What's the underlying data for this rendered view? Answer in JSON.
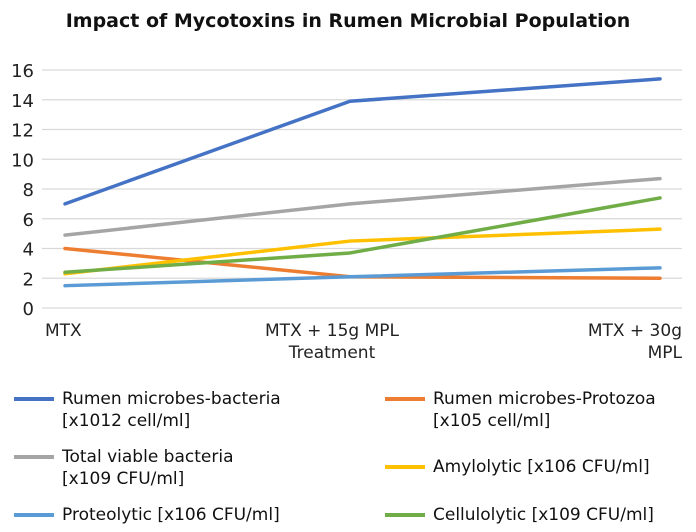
{
  "chart_data": {
    "type": "line",
    "title": "Impact of Mycotoxins in Rumen Microbial Population",
    "categories": [
      [
        "MTX"
      ],
      [
        "MTX + 15g MPL",
        "Treatment"
      ],
      [
        "MTX + 30g",
        "MPL"
      ]
    ],
    "ylim": [
      0,
      16
    ],
    "yticks": [
      "0",
      "2",
      "4",
      "6",
      "8",
      "10",
      "12",
      "14",
      "16"
    ],
    "grid": true,
    "legend_placement": "bottom",
    "series": [
      {
        "name": [
          "Rumen microbes-bacteria",
          "[x1012 cell/ml]"
        ],
        "color": "#4472C4",
        "values": [
          7.0,
          13.9,
          15.4
        ]
      },
      {
        "name": [
          "Rumen microbes-Protozoa",
          "[x105 cell/ml]"
        ],
        "color": "#ED7D31",
        "values": [
          4.0,
          2.1,
          2.0
        ]
      },
      {
        "name": [
          "Total viable bacteria",
          "[x109 CFU/ml]"
        ],
        "color": "#A5A5A5",
        "values": [
          4.9,
          7.0,
          8.7
        ]
      },
      {
        "name": [
          "Amylolytic [x106 CFU/ml]"
        ],
        "color": "#FFC000",
        "values": [
          2.3,
          4.5,
          5.3
        ]
      },
      {
        "name": [
          "Proteolytic [x106 CFU/ml]"
        ],
        "color": "#5B9BD5",
        "values": [
          1.5,
          2.1,
          2.7
        ]
      },
      {
        "name": [
          "Cellulolytic [x109 CFU/ml]"
        ],
        "color": "#70AD47",
        "values": [
          2.4,
          3.7,
          7.4
        ]
      }
    ]
  }
}
